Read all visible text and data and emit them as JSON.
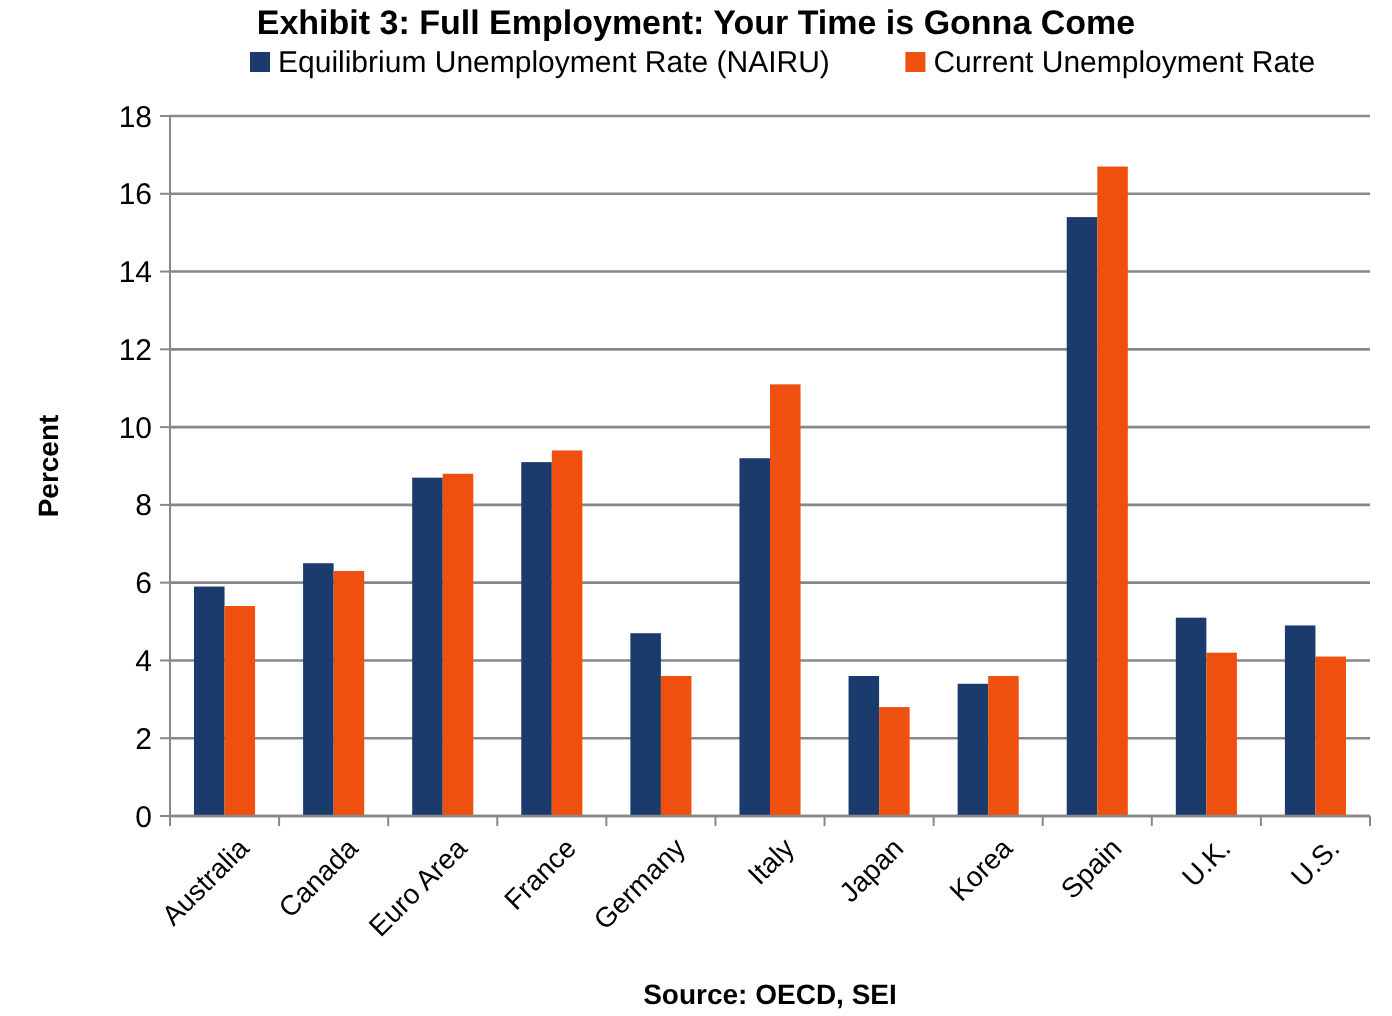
{
  "chart_data": {
    "type": "bar",
    "title": "Exhibit 3: Full Employment: Your Time is Gonna Come",
    "ylabel": "Percent",
    "annotations": [
      "Source: OECD, SEI"
    ],
    "categories": [
      "Australia",
      "Canada",
      "Euro Area",
      "France",
      "Germany",
      "Italy",
      "Japan",
      "Korea",
      "Spain",
      "U.K.",
      "U.S."
    ],
    "series": [
      {
        "name": "Equilibrium Unemployment Rate (NAIRU)",
        "color": "#1a3b6b",
        "values": [
          5.9,
          6.5,
          8.7,
          9.1,
          4.7,
          9.2,
          3.6,
          3.4,
          15.4,
          5.1,
          4.9
        ]
      },
      {
        "name": "Current Unemployment Rate",
        "color": "#f0500f",
        "values": [
          5.4,
          6.3,
          8.8,
          9.4,
          3.6,
          11.1,
          2.8,
          3.6,
          16.7,
          4.2,
          4.1
        ]
      }
    ],
    "ylim": [
      0,
      18
    ],
    "yticks": [
      0,
      2,
      4,
      6,
      8,
      10,
      12,
      14,
      16,
      18
    ],
    "grid": "y",
    "legend": "top"
  }
}
